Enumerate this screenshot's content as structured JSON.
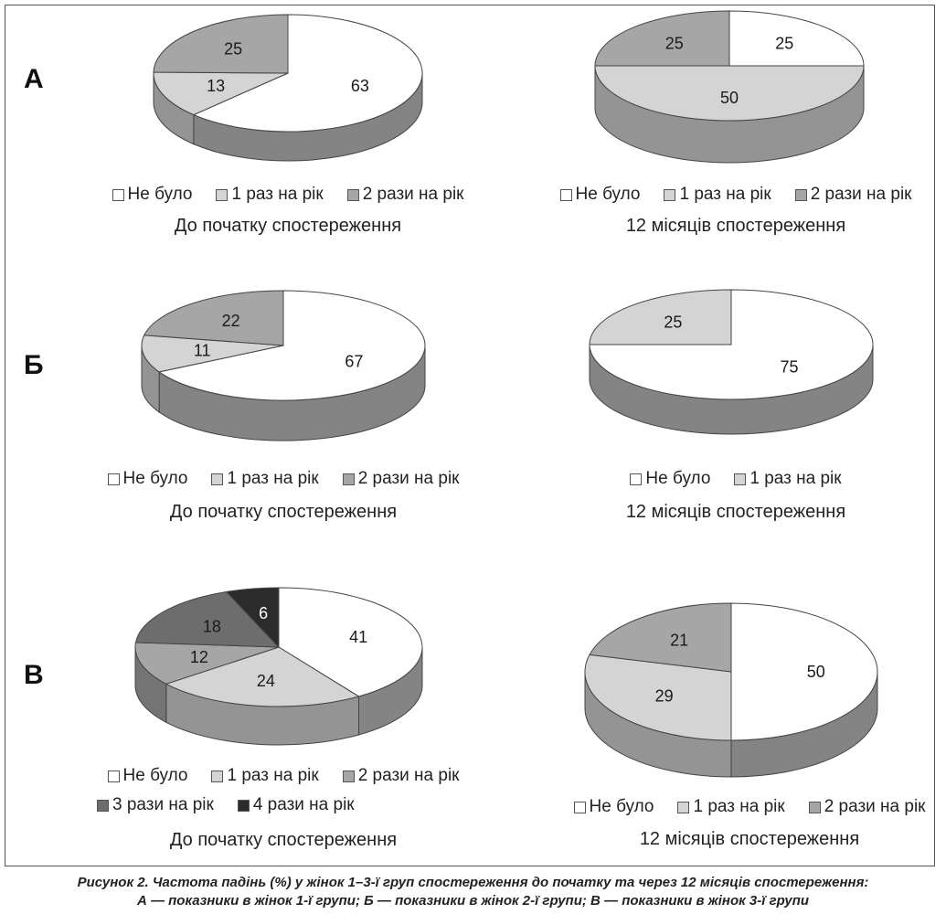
{
  "colors": {
    "ne_bulo": "#ffffff",
    "raz_1": "#d4d4d4",
    "razy_2": "#a6a6a6",
    "razy_3": "#6d6d6d",
    "razy_4": "#2b2b2b"
  },
  "rows": [
    {
      "label": "А"
    },
    {
      "label": "Б"
    },
    {
      "label": "В"
    }
  ],
  "chart_data": [
    {
      "type": "pie",
      "group": "А",
      "title": "До початку спостереження",
      "labels": [
        "Не було",
        "1 раз на рік",
        "2 рази на рік"
      ],
      "values": [
        63,
        13,
        25
      ]
    },
    {
      "type": "pie",
      "group": "А",
      "title": "12 місяців спостереження",
      "labels": [
        "Не було",
        "1 раз на рік",
        "2 рази на рік"
      ],
      "values": [
        25,
        50,
        25
      ]
    },
    {
      "type": "pie",
      "group": "Б",
      "title": "До початку спостереження",
      "labels": [
        "Не було",
        "1 раз на рік",
        "2 рази на рік"
      ],
      "values": [
        67,
        11,
        22
      ]
    },
    {
      "type": "pie",
      "group": "Б",
      "title": "12 місяців спостереження",
      "labels": [
        "Не було",
        "1 раз на рік"
      ],
      "values": [
        75,
        25
      ]
    },
    {
      "type": "pie",
      "group": "В",
      "title": "До початку спостереження",
      "labels": [
        "Не було",
        "1 раз на рік",
        "2 рази на рік",
        "3 рази на рік",
        "4 рази на рік"
      ],
      "values": [
        41,
        24,
        12,
        18,
        6
      ]
    },
    {
      "type": "pie",
      "group": "В",
      "title": "12 місяців спостереження",
      "labels": [
        "Не було",
        "1 раз на рік",
        "2 рази на рік"
      ],
      "values": [
        50,
        29,
        21
      ]
    }
  ],
  "caption": {
    "line1": "Рисунок 2. Частота падінь (%) у жінок 1–3-ї груп спостереження до початку та через 12 місяців спостереження:",
    "line2": "А — показники в жінок 1-ї групи; Б — показники в жінок 2-ї групи; В — показники в жінок 3-ї групи"
  }
}
